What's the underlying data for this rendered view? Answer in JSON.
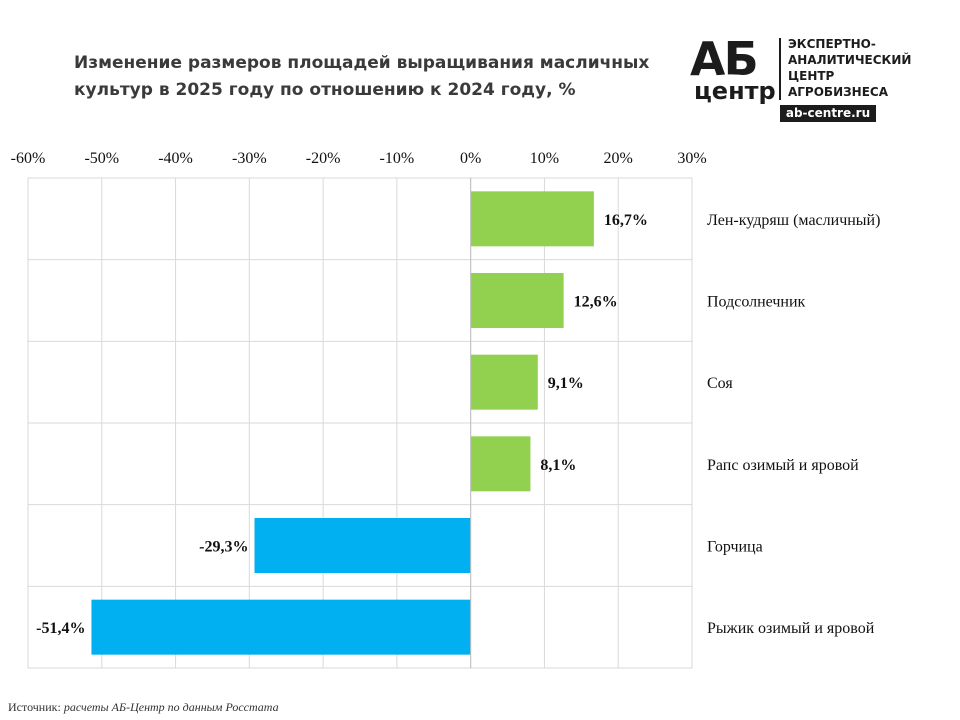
{
  "title": "Изменение размеров площадей выращивания масличных культур в 2025 году по отношению к 2024 году, %",
  "logo": {
    "word": "АБ",
    "sub": "центр",
    "lines": [
      "ЭКСПЕРТНО-",
      "АНАЛИТИЧЕСКИЙ",
      "ЦЕНТР",
      "АГРОБИЗНЕСА"
    ],
    "site": "ab-centre.ru"
  },
  "source": {
    "label": "Источник:",
    "text": "расчеты АБ-Центр по данным Росстата"
  },
  "colors": {
    "positive": "#92d050",
    "negative": "#00b0f0",
    "grid": "#d9d9d9"
  },
  "chart_data": {
    "type": "bar",
    "orientation": "horizontal",
    "title": "Изменение размеров площадей выращивания масличных культур в 2025 году по отношению к 2024 году, %",
    "categories": [
      "Лен-кудряш (масличный)",
      "Подсолнечник",
      "Соя",
      "Рапс озимый и яровой",
      "Горчица",
      "Рыжик озимый и яровой"
    ],
    "values": [
      16.7,
      12.6,
      9.1,
      8.1,
      -29.3,
      -51.4
    ],
    "value_labels": [
      "16,7%",
      "12,6%",
      "9,1%",
      "8,1%",
      "-29,3%",
      "-51,4%"
    ],
    "xlim": [
      -60,
      30
    ],
    "x_ticks": [
      -60,
      -50,
      -40,
      -30,
      -20,
      -10,
      0,
      10,
      20,
      30
    ],
    "x_tick_labels": [
      "-60%",
      "-50%",
      "-40%",
      "-30%",
      "-20%",
      "-10%",
      "0%",
      "10%",
      "20%",
      "30%"
    ],
    "x_axis_position": "top",
    "category_labels_position": "right",
    "grid": true,
    "legend": "none"
  }
}
